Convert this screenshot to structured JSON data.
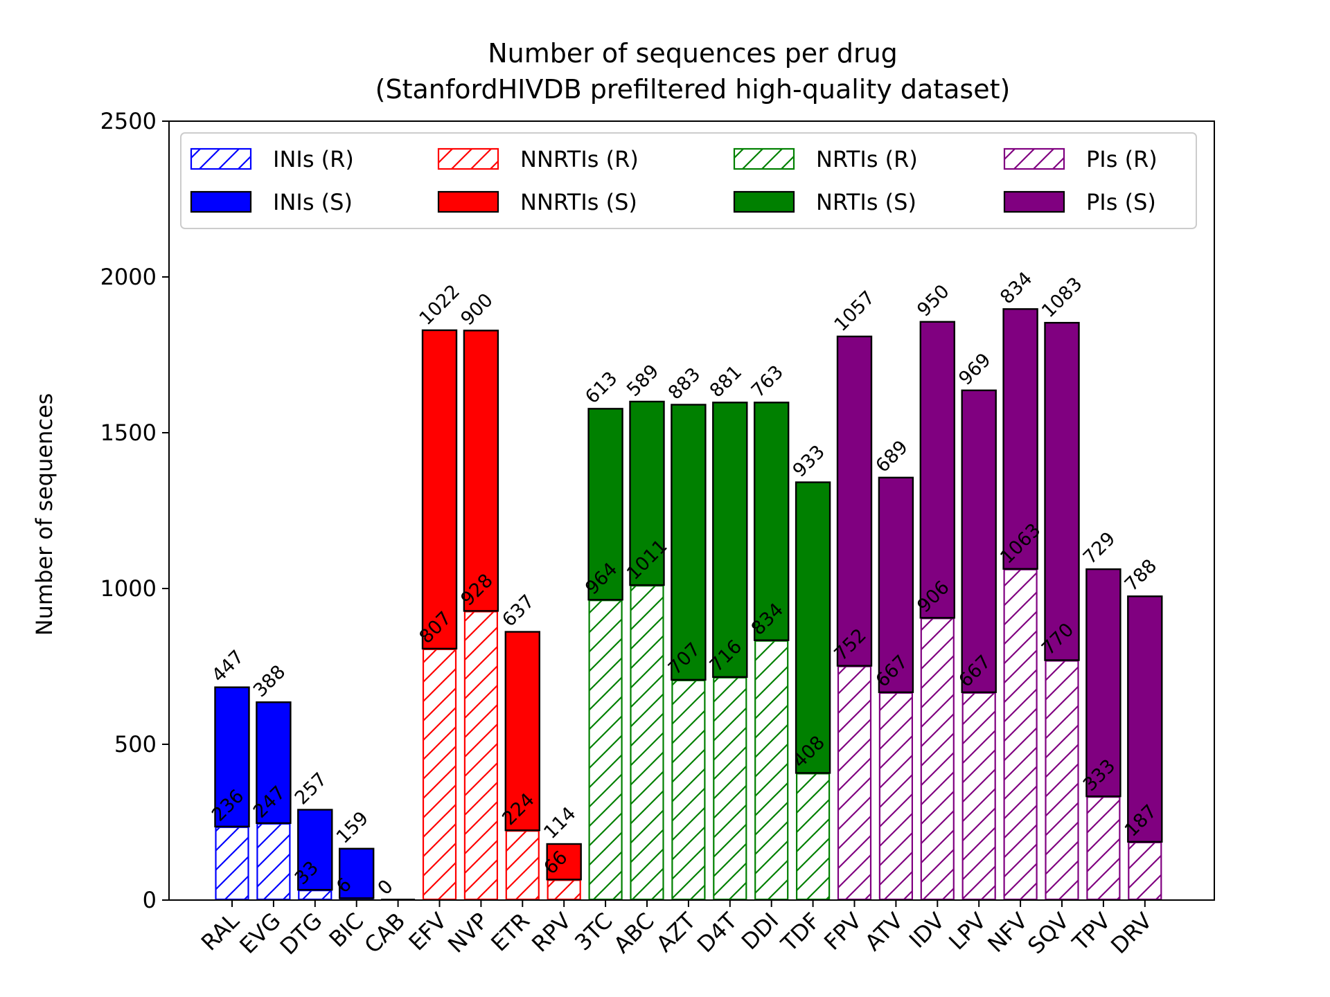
{
  "chart_data": {
    "type": "bar",
    "stacked": true,
    "title_lines": [
      "Number of sequences per drug",
      "(StanfordHIVDB prefiltered high-quality dataset)"
    ],
    "xlabel": "",
    "ylabel": "Number of sequences",
    "ylim": [
      0,
      2500
    ],
    "yticks": [
      0,
      500,
      1000,
      1500,
      2000,
      2500
    ],
    "grid": false,
    "legend_position": "top",
    "categories": [
      "RAL",
      "EVG",
      "DTG",
      "BIC",
      "CAB",
      "EFV",
      "NVP",
      "ETR",
      "RPV",
      "3TC",
      "ABC",
      "AZT",
      "D4T",
      "DDI",
      "TDF",
      "FPV",
      "ATV",
      "IDV",
      "LPV",
      "NFV",
      "SQV",
      "TPV",
      "DRV"
    ],
    "drug_class": [
      "INIs",
      "INIs",
      "INIs",
      "INIs",
      "INIs",
      "NNRTIs",
      "NNRTIs",
      "NNRTIs",
      "NNRTIs",
      "NRTIs",
      "NRTIs",
      "NRTIs",
      "NRTIs",
      "NRTIs",
      "NRTIs",
      "PIs",
      "PIs",
      "PIs",
      "PIs",
      "PIs",
      "PIs",
      "PIs",
      "PIs"
    ],
    "classes": [
      {
        "name": "INIs",
        "color": "#0000ff",
        "r_label": "INIs (R)",
        "s_label": "INIs (S)"
      },
      {
        "name": "NNRTIs",
        "color": "#ff0000",
        "r_label": "NNRTIs (R)",
        "s_label": "NNRTIs (S)"
      },
      {
        "name": "NRTIs",
        "color": "#008000",
        "r_label": "NRTIs (R)",
        "s_label": "NRTIs (S)"
      },
      {
        "name": "PIs",
        "color": "#800080",
        "r_label": "PIs (R)",
        "s_label": "PIs (S)"
      }
    ],
    "resistant": [
      236,
      247,
      33,
      6,
      0,
      807,
      928,
      224,
      66,
      964,
      1011,
      707,
      716,
      834,
      408,
      752,
      667,
      906,
      667,
      1063,
      770,
      333,
      187
    ],
    "susceptible": [
      447,
      388,
      257,
      159,
      0,
      1022,
      900,
      637,
      114,
      613,
      589,
      883,
      881,
      763,
      933,
      1057,
      689,
      950,
      969,
      834,
      1083,
      729,
      788
    ]
  }
}
